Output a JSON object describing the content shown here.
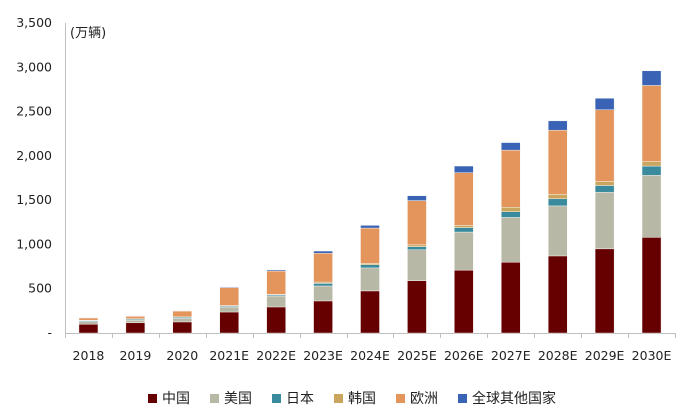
{
  "chart_data": {
    "type": "bar",
    "stacked": true,
    "title": "",
    "unit_label": "(万辆)",
    "xlabel": "",
    "ylabel": "万辆",
    "ylim": [
      0,
      3500
    ],
    "yticks": [
      0,
      500,
      1000,
      1500,
      2000,
      2500,
      3000,
      3500
    ],
    "ytick_labels": [
      "-",
      "500",
      "1,000",
      "1,500",
      "2,000",
      "2,500",
      "3,000",
      "3,500"
    ],
    "grid": false,
    "legend_position": "bottom",
    "categories": [
      "2018",
      "2019",
      "2020",
      "2021E",
      "2022E",
      "2023E",
      "2024E",
      "2025E",
      "2026E",
      "2027E",
      "2028E",
      "2029E",
      "2030E"
    ],
    "series": [
      {
        "name": "中国",
        "color": "#660000",
        "values": [
          100,
          115,
          125,
          237,
          294,
          362,
          475,
          590,
          710,
          800,
          870,
          950,
          1080
        ]
      },
      {
        "name": "美国",
        "color": "#B8B8A6",
        "values": [
          30,
          30,
          40,
          57,
          124,
          169,
          260,
          350,
          430,
          505,
          565,
          640,
          700
        ]
      },
      {
        "name": "日本",
        "color": "#3A8A9E",
        "values": [
          10,
          10,
          12,
          11,
          12,
          29,
          35,
          35,
          50,
          65,
          80,
          75,
          105
        ]
      },
      {
        "name": "韩国",
        "color": "#C9A55E",
        "values": [
          5,
          5,
          5,
          5,
          5,
          15,
          15,
          20,
          25,
          50,
          50,
          45,
          50
        ]
      },
      {
        "name": "欧洲",
        "color": "#E3955C",
        "values": [
          25,
          28,
          66,
          203,
          265,
          325,
          400,
          500,
          595,
          645,
          725,
          810,
          860
        ]
      },
      {
        "name": "全球其他国家",
        "color": "#3B63B5",
        "values": [
          5,
          5,
          5,
          7,
          12,
          25,
          30,
          55,
          75,
          85,
          105,
          130,
          165
        ]
      }
    ]
  },
  "legend": {
    "items": [
      {
        "label": "中国",
        "color": "#660000"
      },
      {
        "label": "美国",
        "color": "#B8B8A6"
      },
      {
        "label": "日本",
        "color": "#3A8A9E"
      },
      {
        "label": "韩国",
        "color": "#C9A55E"
      },
      {
        "label": "欧洲",
        "color": "#E3955C"
      },
      {
        "label": "全球其他国家",
        "color": "#3B63B5"
      }
    ]
  }
}
